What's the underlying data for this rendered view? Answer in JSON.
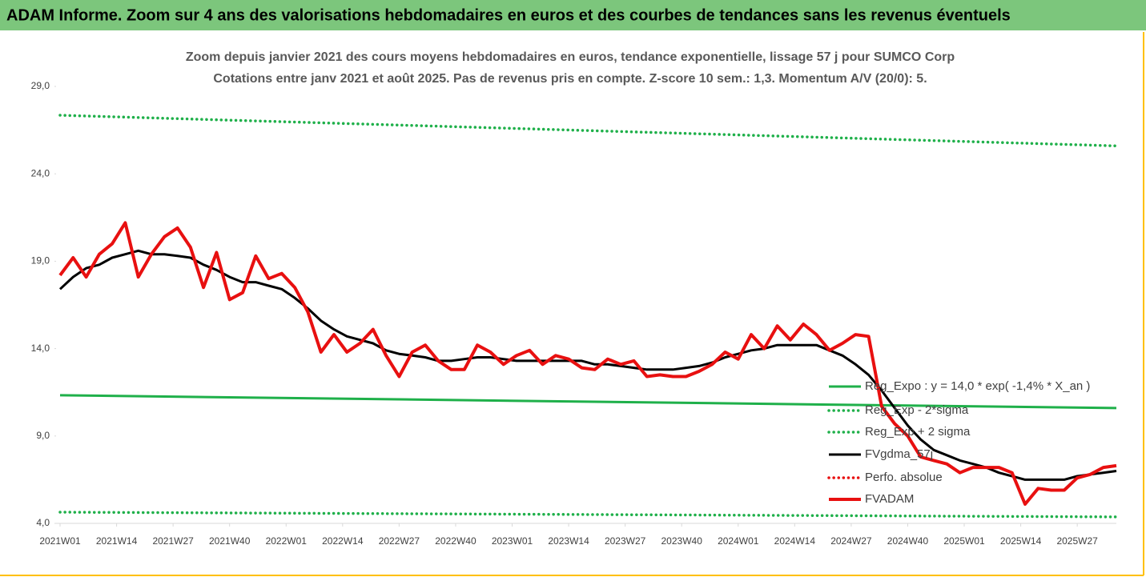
{
  "header": {
    "title": "ADAM Informe. Zoom sur 4 ans des valorisations hebdomadaires en euros et des courbes de tendances sans les revenus éventuels"
  },
  "chart_data": {
    "type": "line",
    "title": "Zoom depuis janvier 2021 des cours moyens hebdomadaires en euros, tendance exponentielle, lissage 57 j pour SUMCO Corp",
    "subtitle": "Cotations entre janv 2021 et août 2025.  Pas de revenus pris en compte. Z-score 10 sem.: 1,3. Momentum A/V (20/0): 5.",
    "xlim": [
      0,
      243
    ],
    "xticks": [
      {
        "value": 0,
        "label": "2021W01"
      },
      {
        "value": 13,
        "label": "2021W14"
      },
      {
        "value": 26,
        "label": "2021W27"
      },
      {
        "value": 39,
        "label": "2021W40"
      },
      {
        "value": 52,
        "label": "2022W01"
      },
      {
        "value": 65,
        "label": "2022W14"
      },
      {
        "value": 78,
        "label": "2022W27"
      },
      {
        "value": 91,
        "label": "2022W40"
      },
      {
        "value": 104,
        "label": "2023W01"
      },
      {
        "value": 117,
        "label": "2023W14"
      },
      {
        "value": 130,
        "label": "2023W27"
      },
      {
        "value": 143,
        "label": "2023W40"
      },
      {
        "value": 156,
        "label": "2024W01"
      },
      {
        "value": 169,
        "label": "2024W14"
      },
      {
        "value": 182,
        "label": "2024W27"
      },
      {
        "value": 195,
        "label": "2024W40"
      },
      {
        "value": 208,
        "label": "2025W01"
      },
      {
        "value": 221,
        "label": "2025W14"
      },
      {
        "value": 234,
        "label": "2025W27"
      }
    ],
    "ylim": [
      4,
      29
    ],
    "yticks": [
      {
        "value": 4,
        "label": "4,0"
      },
      {
        "value": 9,
        "label": "9,0"
      },
      {
        "value": 14,
        "label": "14,0"
      },
      {
        "value": 19,
        "label": "19,0"
      },
      {
        "value": 24,
        "label": "24,0"
      },
      {
        "value": 29,
        "label": "29,0"
      }
    ],
    "legend": "right",
    "series": [
      {
        "name": "Reg_Expo : y = 14,0 * exp( -1,4% *  X_an )",
        "color": "#1fb04a",
        "style": "solid",
        "x": [
          0,
          243
        ],
        "values": [
          11.33,
          10.6
        ]
      },
      {
        "name": "Reg_Exp - 2*sigma",
        "color": "#1fb04a",
        "style": "dotted",
        "x": [
          0,
          243
        ],
        "values": [
          4.64,
          4.37
        ]
      },
      {
        "name": "Reg_Exp + 2 sigma",
        "color": "#1fb04a",
        "style": "dotted",
        "x": [
          0,
          243
        ],
        "values": [
          27.35,
          25.6
        ]
      },
      {
        "name": "FVgdma_57j",
        "color": "#000000",
        "style": "solid",
        "x": [
          0,
          3,
          6,
          9,
          12,
          15,
          18,
          21,
          24,
          27,
          30,
          33,
          36,
          39,
          42,
          45,
          48,
          51,
          54,
          57,
          60,
          63,
          66,
          69,
          72,
          75,
          78,
          81,
          84,
          87,
          90,
          93,
          96,
          99,
          102,
          105,
          108,
          111,
          114,
          117,
          120,
          123,
          126,
          129,
          132,
          135,
          138,
          141,
          144,
          147,
          150,
          153,
          156,
          159,
          162,
          165,
          168,
          171,
          174,
          177,
          180,
          183,
          186,
          189,
          192,
          195,
          198,
          201,
          204,
          207,
          210,
          213,
          216,
          219,
          222,
          225,
          228,
          231,
          234,
          237,
          240,
          243
        ],
        "values": [
          17.4,
          18.1,
          18.6,
          18.8,
          19.2,
          19.4,
          19.6,
          19.4,
          19.4,
          19.3,
          19.2,
          18.8,
          18.5,
          18.1,
          17.8,
          17.8,
          17.6,
          17.4,
          16.9,
          16.3,
          15.6,
          15.1,
          14.7,
          14.5,
          14.3,
          13.9,
          13.7,
          13.6,
          13.5,
          13.3,
          13.3,
          13.4,
          13.5,
          13.5,
          13.4,
          13.3,
          13.3,
          13.3,
          13.3,
          13.3,
          13.3,
          13.1,
          13.1,
          13.0,
          12.9,
          12.8,
          12.8,
          12.8,
          12.9,
          13.0,
          13.2,
          13.5,
          13.7,
          13.9,
          14.0,
          14.2,
          14.2,
          14.2,
          14.2,
          13.9,
          13.6,
          13.1,
          12.5,
          11.6,
          10.6,
          9.6,
          8.8,
          8.2,
          7.9,
          7.6,
          7.4,
          7.2,
          6.9,
          6.7,
          6.5,
          6.5,
          6.5,
          6.5,
          6.7,
          6.8,
          6.9,
          7.0
        ]
      },
      {
        "name": "Perfo. absolue",
        "color": "#e81010",
        "style": "dotted",
        "x": [],
        "values": []
      },
      {
        "name": "FVADAM",
        "color": "#e81010",
        "style": "solid",
        "x": [
          0,
          3,
          6,
          9,
          12,
          15,
          18,
          21,
          24,
          27,
          30,
          33,
          36,
          39,
          42,
          45,
          48,
          51,
          54,
          57,
          60,
          63,
          66,
          69,
          72,
          75,
          78,
          81,
          84,
          87,
          90,
          93,
          96,
          99,
          102,
          105,
          108,
          111,
          114,
          117,
          120,
          123,
          126,
          129,
          132,
          135,
          138,
          141,
          144,
          147,
          150,
          153,
          156,
          159,
          162,
          165,
          168,
          171,
          174,
          177,
          180,
          183,
          186,
          189,
          192,
          195,
          198,
          201,
          204,
          207,
          210,
          213,
          216,
          219,
          222,
          225,
          228,
          231,
          234,
          237,
          240,
          243
        ],
        "values": [
          18.2,
          19.2,
          18.1,
          19.4,
          20.0,
          21.2,
          18.1,
          19.4,
          20.4,
          20.9,
          19.8,
          17.5,
          19.5,
          16.8,
          17.2,
          19.3,
          18.0,
          18.3,
          17.5,
          16.1,
          13.8,
          14.8,
          13.8,
          14.3,
          15.1,
          13.6,
          12.4,
          13.8,
          14.2,
          13.3,
          12.8,
          12.8,
          14.2,
          13.8,
          13.1,
          13.6,
          13.9,
          13.1,
          13.6,
          13.4,
          12.9,
          12.8,
          13.4,
          13.1,
          13.3,
          12.4,
          12.5,
          12.4,
          12.4,
          12.7,
          13.1,
          13.8,
          13.4,
          14.8,
          14.0,
          15.3,
          14.5,
          15.4,
          14.8,
          13.9,
          14.3,
          14.8,
          14.7,
          10.7,
          9.7,
          9.0,
          7.8,
          7.6,
          7.4,
          6.9,
          7.2,
          7.2,
          7.2,
          6.9,
          5.1,
          6.0,
          5.9,
          5.9,
          6.6,
          6.8,
          7.2,
          7.3
        ]
      }
    ]
  }
}
